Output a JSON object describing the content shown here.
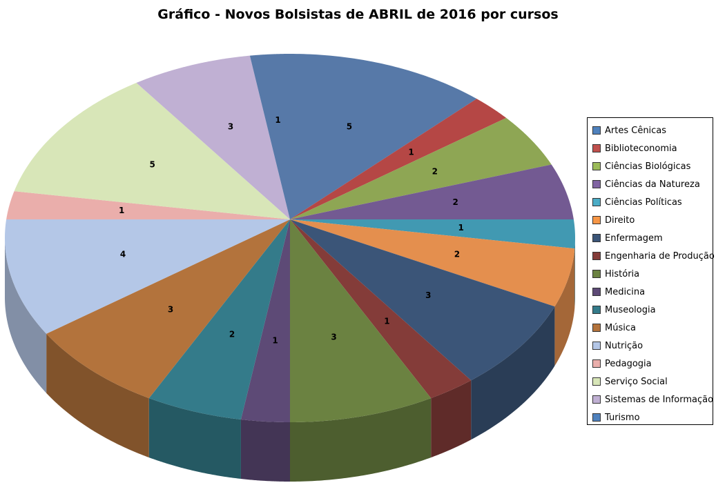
{
  "chart_data": {
    "type": "pie",
    "style": "3d",
    "title": "Gráfico - Novos Bolsistas de ABRIL de 2016 por cursos",
    "legend_position": "right",
    "categories": [
      "Artes Cênicas",
      "Biblioteconomia",
      "Ciências Biológicas",
      "Ciências da Natureza",
      "Ciências Políticas",
      "Direito",
      "Enfermagem",
      "Engenharia de Produção",
      "História",
      "Medicina",
      "Museologia",
      "Música",
      "Nutrição",
      "Pedagogia",
      "Serviço Social",
      "Sistemas de Informação",
      "Turismo"
    ],
    "values": [
      5,
      1,
      2,
      2,
      1,
      2,
      3,
      1,
      3,
      1,
      2,
      3,
      4,
      1,
      5,
      3,
      1
    ],
    "colors": [
      "#5779a8",
      "#b54745",
      "#8ea654",
      "#735a92",
      "#4199b2",
      "#e48f4e",
      "#3b5578",
      "#843c39",
      "#6b8241",
      "#5d4a76",
      "#347b8a",
      "#b3733c",
      "#b4c7e7",
      "#eaaeab",
      "#d8e6b8",
      "#c0b0d3",
      "#5779a8"
    ],
    "legend_colors": [
      "#4f81bd",
      "#c0504d",
      "#9bbb59",
      "#8064a2",
      "#4bacc6",
      "#f79646",
      "#3b5578",
      "#843c39",
      "#6b8241",
      "#5d4a76",
      "#347b8a",
      "#b3733c",
      "#b4c7e7",
      "#eaaeab",
      "#d8e6b8",
      "#c0b0d3",
      "#4f81bd"
    ]
  }
}
